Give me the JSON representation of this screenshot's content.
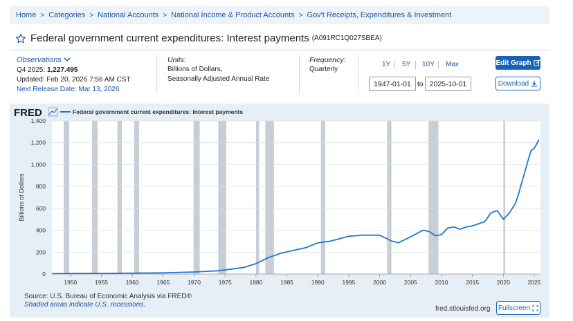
{
  "breadcrumb": [
    "Home",
    "Categories",
    "National Accounts",
    "National Income & Product Accounts",
    "Gov't Receipts, Expenditures & Investment"
  ],
  "series": {
    "title": "Federal government current expenditures: Interest payments",
    "code": "(A091RC1Q027SBEA)"
  },
  "observations": {
    "label": "Observations",
    "latest_period": "Q4 2025:",
    "latest_value": "1,227.495",
    "updated": "Updated: Feb 20, 2026 7:56 AM CST",
    "next_release": "Next Release Date: Mar 13, 2026"
  },
  "units": {
    "label": "Units:",
    "line1": "Billions of Dollars,",
    "line2": "Seasonally Adjusted Annual Rate"
  },
  "frequency": {
    "label": "Frequency:",
    "value": "Quarterly"
  },
  "range_buttons": [
    "1Y",
    "5Y",
    "10Y",
    "Max"
  ],
  "date_range": {
    "start": "1947-01-01",
    "to": "to",
    "end": "2025-10-01"
  },
  "buttons": {
    "edit_graph": "Edit Graph",
    "download": "Download",
    "fullscreen": "Fullscreen"
  },
  "footer": {
    "source": "Source: U.S. Bureau of Economic Analysis via FRED®",
    "shaded": "Shaded areas indicate U.S. recessions.",
    "url": "fred.stlouisfed.org"
  },
  "fred_logo": "FRED",
  "colors": {
    "line": "#1f77c8",
    "recession": "#c8ced6",
    "accent": "#1863b5"
  },
  "chart_data": {
    "type": "line",
    "title": "",
    "legend": "Federal government current expenditures: Interest payments",
    "ylabel": "Billions of Dollars",
    "xlabel": "",
    "xlim": [
      1947,
      2026
    ],
    "ylim": [
      0,
      1400
    ],
    "yticks": [
      0,
      200,
      400,
      600,
      800,
      "1,000",
      "1,200",
      "1,400"
    ],
    "ytick_values": [
      0,
      200,
      400,
      600,
      800,
      1000,
      1200,
      1400
    ],
    "xticks": [
      1950,
      1955,
      1960,
      1965,
      1970,
      1975,
      1980,
      1985,
      1990,
      1995,
      2000,
      2005,
      2010,
      2015,
      2020,
      2025
    ],
    "recessions": [
      [
        1948.9,
        1949.8
      ],
      [
        1953.5,
        1954.4
      ],
      [
        1957.6,
        1958.3
      ],
      [
        1960.3,
        1961.1
      ],
      [
        1969.9,
        1970.9
      ],
      [
        1973.9,
        1975.2
      ],
      [
        1980.0,
        1980.5
      ],
      [
        1981.5,
        1982.9
      ],
      [
        1990.5,
        1991.2
      ],
      [
        2001.2,
        2001.9
      ],
      [
        2007.9,
        2009.5
      ],
      [
        2020.0,
        2020.3
      ]
    ],
    "x": [
      1947,
      1950,
      1955,
      1960,
      1965,
      1970,
      1974,
      1978,
      1980,
      1982,
      1984,
      1986,
      1988,
      1990,
      1992,
      1995,
      1997,
      2000,
      2002,
      2003,
      2005,
      2007,
      2008,
      2009,
      2010,
      2011,
      2012,
      2013,
      2014,
      2015,
      2016,
      2017,
      2018,
      2019,
      2020,
      2021,
      2022,
      2022.5,
      2023,
      2023.5,
      2024,
      2024.5,
      2025,
      2025.75
    ],
    "values": [
      4,
      5,
      6,
      8,
      11,
      19,
      30,
      60,
      95,
      150,
      190,
      215,
      240,
      285,
      300,
      345,
      355,
      355,
      300,
      285,
      340,
      400,
      390,
      350,
      360,
      420,
      430,
      410,
      430,
      440,
      460,
      480,
      560,
      580,
      500,
      560,
      650,
      740,
      840,
      940,
      1040,
      1130,
      1150,
      1227
    ]
  }
}
